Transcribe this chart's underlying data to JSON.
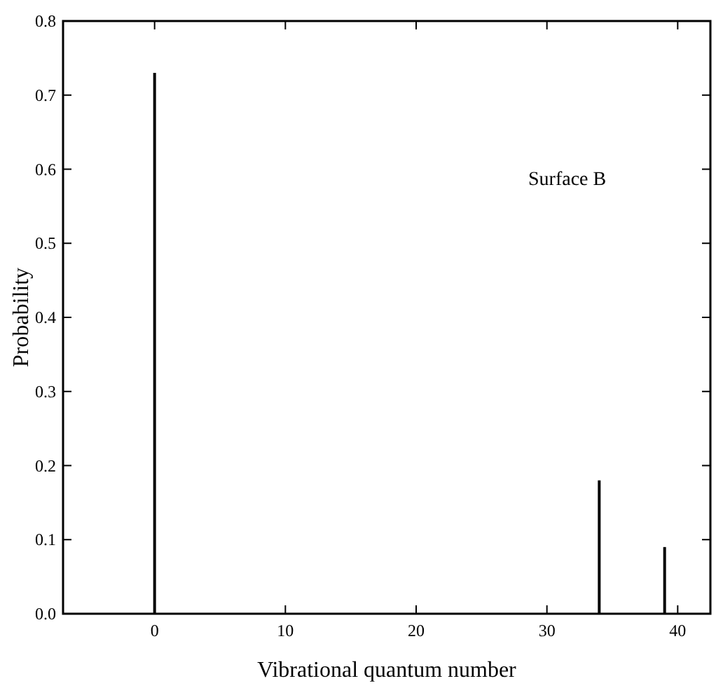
{
  "chart_data": {
    "type": "bar",
    "xlabel": "Vibrational quantum number",
    "ylabel": "Probability",
    "annotations": [
      "Surface B"
    ],
    "x": [
      0,
      34,
      39
    ],
    "values": [
      0.73,
      0.18,
      0.09
    ],
    "color": "#000000",
    "xlim": [
      -7,
      42.5
    ],
    "xticks": [
      0,
      10,
      20,
      30,
      40
    ],
    "ylim": [
      0,
      0.8
    ],
    "yticks": [
      {
        "value": 0,
        "label": "0.0"
      },
      {
        "value": 0.1,
        "label": "0.1"
      },
      {
        "value": 0.2,
        "label": "0.2"
      },
      {
        "value": 0.3,
        "label": "0.3"
      },
      {
        "value": 0.4,
        "label": "0.4"
      },
      {
        "value": 0.5,
        "label": "0.5"
      },
      {
        "value": 0.6,
        "label": "0.6"
      },
      {
        "value": 0.7,
        "label": "0.7"
      },
      {
        "value": 0.8,
        "label": "0.8"
      }
    ],
    "grid": false
  }
}
